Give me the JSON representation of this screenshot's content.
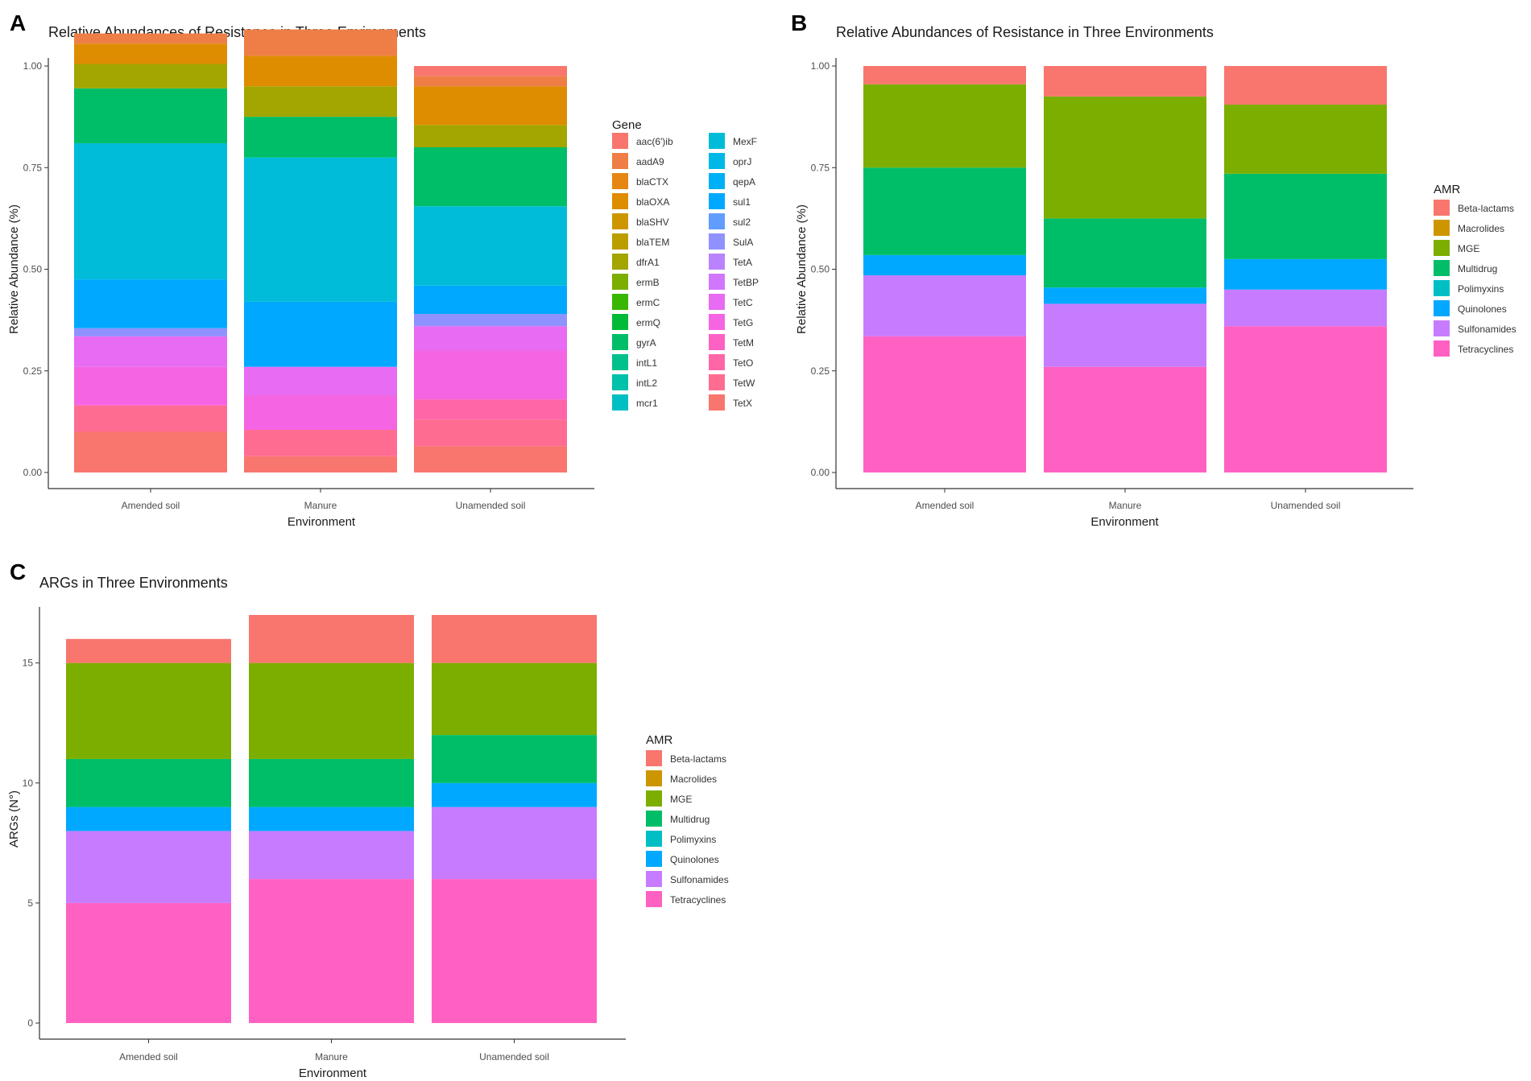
{
  "panel_labels": [
    "A",
    "B",
    "C"
  ],
  "chart_data": [
    {
      "type": "bar",
      "stacked": true,
      "title": "Relative Abundances of Resistance in Three Environments",
      "xlabel": "Environment",
      "ylabel": "Relative Abundance (%)",
      "ylim": [
        0,
        1
      ],
      "yticks": [
        "0.00",
        "0.25",
        "0.50",
        "0.75",
        "1.00"
      ],
      "categories": [
        "Amended soil",
        "Manure",
        "Unamended soil"
      ],
      "legend_title": "Gene",
      "series": [
        {
          "name": "TetX",
          "color": "#F8766D",
          "values": [
            0.1,
            0.04,
            0.065
          ]
        },
        {
          "name": "TetW",
          "color": "#FF6C91",
          "values": [
            0.065,
            0.065,
            0.065
          ]
        },
        {
          "name": "TetO",
          "color": "#FF66A8",
          "values": [
            0.0,
            0.0,
            0.05
          ]
        },
        {
          "name": "TetM",
          "color": "#FC61C3",
          "values": [
            0.0,
            0.0,
            0.0
          ]
        },
        {
          "name": "TetG",
          "color": "#F564E3",
          "values": [
            0.095,
            0.085,
            0.12
          ]
        },
        {
          "name": "TetC",
          "color": "#E76BF3",
          "values": [
            0.075,
            0.07,
            0.06
          ]
        },
        {
          "name": "TetBP",
          "color": "#D177FF",
          "values": [
            0.0,
            0.0,
            0.0
          ]
        },
        {
          "name": "TetA",
          "color": "#B983FF",
          "values": [
            0.0,
            0.0,
            0.0
          ]
        },
        {
          "name": "SulA",
          "color": "#8F91FF",
          "values": [
            0.02,
            0.0,
            0.03
          ]
        },
        {
          "name": "sul2",
          "color": "#619CFF",
          "values": [
            0.0,
            0.0,
            0.0
          ]
        },
        {
          "name": "sul1",
          "color": "#00A9FF",
          "values": [
            0.12,
            0.16,
            0.07
          ]
        },
        {
          "name": "qepA",
          "color": "#00B0F6",
          "values": [
            0.0,
            0.0,
            0.0
          ]
        },
        {
          "name": "oprJ",
          "color": "#00B8E7",
          "values": [
            0.0,
            0.0,
            0.0
          ]
        },
        {
          "name": "MexF",
          "color": "#00BCD8",
          "values": [
            0.335,
            0.355,
            0.195
          ]
        },
        {
          "name": "mcr1",
          "color": "#00BFC4",
          "values": [
            0.0,
            0.0,
            0.0
          ]
        },
        {
          "name": "intL2",
          "color": "#00C1AA",
          "values": [
            0.0,
            0.0,
            0.0
          ]
        },
        {
          "name": "intL1",
          "color": "#00C08B",
          "values": [
            0.0,
            0.0,
            0.0
          ]
        },
        {
          "name": "gyrA",
          "color": "#00BE67",
          "values": [
            0.135,
            0.1,
            0.145
          ]
        },
        {
          "name": "ermQ",
          "color": "#00BA38",
          "values": [
            0.0,
            0.0,
            0.0
          ]
        },
        {
          "name": "ermC",
          "color": "#39B600",
          "values": [
            0.0,
            0.0,
            0.0
          ]
        },
        {
          "name": "ermB",
          "color": "#7CAE00",
          "values": [
            0.0,
            0.0,
            0.0
          ]
        },
        {
          "name": "dfrA1",
          "color": "#A3A500",
          "values": [
            0.06,
            0.075,
            0.055
          ]
        },
        {
          "name": "blaTEM",
          "color": "#BB9D00",
          "values": [
            0.0,
            0.0,
            0.0
          ]
        },
        {
          "name": "blaSHV",
          "color": "#CD9600",
          "values": [
            0.0,
            0.0,
            0.0
          ]
        },
        {
          "name": "blaOXA",
          "color": "#DE8C00",
          "values": [
            0.05,
            0.075,
            0.095
          ]
        },
        {
          "name": "blaCTX",
          "color": "#E68613",
          "values": [
            0.0,
            0.0,
            0.0
          ]
        },
        {
          "name": "aadA9",
          "color": "#EE7E45",
          "values": [
            0.025,
            0.065,
            0.025
          ]
        },
        {
          "name": "aac(6')ib",
          "color": "#F8766D",
          "values": [
            0.0,
            0.0,
            0.025
          ]
        }
      ],
      "legend_entries": [
        {
          "name": "aac(6')ib",
          "color": "#F8766D"
        },
        {
          "name": "aadA9",
          "color": "#EE7E45"
        },
        {
          "name": "blaCTX",
          "color": "#E68613"
        },
        {
          "name": "blaOXA",
          "color": "#DE8C00"
        },
        {
          "name": "blaSHV",
          "color": "#CD9600"
        },
        {
          "name": "blaTEM",
          "color": "#BB9D00"
        },
        {
          "name": "dfrA1",
          "color": "#A3A500"
        },
        {
          "name": "ermB",
          "color": "#7CAE00"
        },
        {
          "name": "ermC",
          "color": "#39B600"
        },
        {
          "name": "ermQ",
          "color": "#00BA38"
        },
        {
          "name": "gyrA",
          "color": "#00BE67"
        },
        {
          "name": "intL1",
          "color": "#00C08B"
        },
        {
          "name": "intL2",
          "color": "#00C1AA"
        },
        {
          "name": "mcr1",
          "color": "#00BFC4"
        },
        {
          "name": "MexF",
          "color": "#00BCD8"
        },
        {
          "name": "oprJ",
          "color": "#00B8E7"
        },
        {
          "name": "qepA",
          "color": "#00B0F6"
        },
        {
          "name": "sul1",
          "color": "#00A9FF"
        },
        {
          "name": "sul2",
          "color": "#619CFF"
        },
        {
          "name": "SulA",
          "color": "#8F91FF"
        },
        {
          "name": "TetA",
          "color": "#B983FF"
        },
        {
          "name": "TetBP",
          "color": "#D177FF"
        },
        {
          "name": "TetC",
          "color": "#E76BF3"
        },
        {
          "name": "TetG",
          "color": "#F564E3"
        },
        {
          "name": "TetM",
          "color": "#FC61C3"
        },
        {
          "name": "TetO",
          "color": "#FF66A8"
        },
        {
          "name": "TetW",
          "color": "#FF6C91"
        },
        {
          "name": "TetX",
          "color": "#F8766D"
        }
      ]
    },
    {
      "type": "bar",
      "stacked": true,
      "title": "Relative Abundances of Resistance in Three Environments",
      "xlabel": "Environment",
      "ylabel": "Relative Abundance (%)",
      "ylim": [
        0,
        1
      ],
      "yticks": [
        "0.00",
        "0.25",
        "0.50",
        "0.75",
        "1.00"
      ],
      "categories": [
        "Amended soil",
        "Manure",
        "Unamended soil"
      ],
      "legend_title": "AMR",
      "series": [
        {
          "name": "Tetracyclines",
          "color": "#FF61C3",
          "values": [
            0.335,
            0.26,
            0.36
          ]
        },
        {
          "name": "Sulfonamides",
          "color": "#C77CFF",
          "values": [
            0.15,
            0.155,
            0.09
          ]
        },
        {
          "name": "Quinolones",
          "color": "#00A9FF",
          "values": [
            0.05,
            0.04,
            0.075
          ]
        },
        {
          "name": "Polimyxins",
          "color": "#00BFC4",
          "values": [
            0.0,
            0.0,
            0.0
          ]
        },
        {
          "name": "Multidrug",
          "color": "#00BE67",
          "values": [
            0.215,
            0.17,
            0.21
          ]
        },
        {
          "name": "MGE",
          "color": "#7CAE00",
          "values": [
            0.205,
            0.3,
            0.17
          ]
        },
        {
          "name": "Macrolides",
          "color": "#CD9600",
          "values": [
            0.0,
            0.0,
            0.0
          ]
        },
        {
          "name": "Beta-lactams",
          "color": "#F8766D",
          "values": [
            0.045,
            0.075,
            0.095
          ]
        }
      ],
      "legend_entries": [
        {
          "name": "Beta-lactams",
          "color": "#F8766D"
        },
        {
          "name": "Macrolides",
          "color": "#CD9600"
        },
        {
          "name": "MGE",
          "color": "#7CAE00"
        },
        {
          "name": "Multidrug",
          "color": "#00BE67"
        },
        {
          "name": "Polimyxins",
          "color": "#00BFC4"
        },
        {
          "name": "Quinolones",
          "color": "#00A9FF"
        },
        {
          "name": "Sulfonamides",
          "color": "#C77CFF"
        },
        {
          "name": "Tetracyclines",
          "color": "#FF61C3"
        }
      ]
    },
    {
      "type": "bar",
      "stacked": true,
      "title": "ARGs in Three Environments",
      "xlabel": "Environment",
      "ylabel": "ARGs (N°)",
      "ylim": [
        0,
        17
      ],
      "yticks": [
        "0",
        "5",
        "10",
        "15"
      ],
      "categories": [
        "Amended soil",
        "Manure",
        "Unamended soil"
      ],
      "legend_title": "AMR",
      "series": [
        {
          "name": "Tetracyclines",
          "color": "#FF61C3",
          "values": [
            5,
            6,
            6
          ]
        },
        {
          "name": "Sulfonamides",
          "color": "#C77CFF",
          "values": [
            3,
            2,
            3
          ]
        },
        {
          "name": "Quinolones",
          "color": "#00A9FF",
          "values": [
            1,
            1,
            1
          ]
        },
        {
          "name": "Polimyxins",
          "color": "#00BFC4",
          "values": [
            0,
            0,
            0
          ]
        },
        {
          "name": "Multidrug",
          "color": "#00BE67",
          "values": [
            2,
            2,
            2
          ]
        },
        {
          "name": "MGE",
          "color": "#7CAE00",
          "values": [
            4,
            4,
            3
          ]
        },
        {
          "name": "Macrolides",
          "color": "#CD9600",
          "values": [
            0,
            0,
            0
          ]
        },
        {
          "name": "Beta-lactams",
          "color": "#F8766D",
          "values": [
            1,
            2,
            2
          ]
        }
      ],
      "legend_entries": [
        {
          "name": "Beta-lactams",
          "color": "#F8766D"
        },
        {
          "name": "Macrolides",
          "color": "#CD9600"
        },
        {
          "name": "MGE",
          "color": "#7CAE00"
        },
        {
          "name": "Multidrug",
          "color": "#00BE67"
        },
        {
          "name": "Polimyxins",
          "color": "#00BFC4"
        },
        {
          "name": "Quinolones",
          "color": "#00A9FF"
        },
        {
          "name": "Sulfonamides",
          "color": "#C77CFF"
        },
        {
          "name": "Tetracyclines",
          "color": "#FF61C3"
        }
      ]
    }
  ]
}
